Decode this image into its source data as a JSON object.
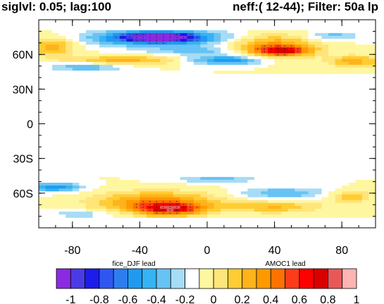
{
  "chart_data": {
    "type": "heatmap",
    "title_left": "siglvl: 0.05; lag:100",
    "title_right": "neff:( 12-44); Filter: 50a lp",
    "x_tick_labels": [
      "-80",
      "-40",
      "0",
      "40",
      "80"
    ],
    "x_ticks": [
      -80,
      -40,
      0,
      40,
      80
    ],
    "y_tick_labels": [
      "60N",
      "30N",
      "0",
      "30S",
      "60S"
    ],
    "y_ticks": [
      60,
      30,
      0,
      -30,
      -60
    ],
    "xlim": [
      -100,
      100
    ],
    "ylim": [
      -90,
      90
    ],
    "colorbar": {
      "left_label": "fice_DJF lead",
      "right_label": "AMOC1 lead",
      "tick_labels": [
        "-1",
        "-0.8",
        "-0.6",
        "-0.4",
        "-0.2",
        "0",
        "0.2",
        "0.4",
        "0.6",
        "0.8",
        "1"
      ],
      "colors": [
        "#8a2be2",
        "#4b3be6",
        "#1c1ceb",
        "#2f56f0",
        "#2e7df0",
        "#1f9af0",
        "#35b3f2",
        "#67c3f3",
        "#a6dcf5",
        "#ffffff",
        "#fff6a0",
        "#ffe57a",
        "#ffcc33",
        "#ffb31a",
        "#ff9900",
        "#ff7200",
        "#ff3c1a",
        "#ff0000",
        "#d90000",
        "#e85858",
        "#ffb3b3"
      ]
    },
    "bands": [
      {
        "name": "north",
        "lat_range": [
          44,
          81
        ],
        "blobs": [
          {
            "x": -28,
            "y": 74,
            "rx": 42,
            "ry": 7,
            "v": -0.55
          },
          {
            "x": -30,
            "y": 75,
            "rx": 22,
            "ry": 4,
            "v": -0.75
          },
          {
            "x": 12,
            "y": 55,
            "rx": 22,
            "ry": 4,
            "v": -0.5
          },
          {
            "x": 38,
            "y": 67,
            "rx": 26,
            "ry": 10,
            "v": 0.45
          },
          {
            "x": 45,
            "y": 63,
            "rx": 15,
            "ry": 4,
            "v": 0.6
          },
          {
            "x": -92,
            "y": 67,
            "rx": 14,
            "ry": 8,
            "v": 0.35
          },
          {
            "x": -50,
            "y": 55,
            "rx": 32,
            "ry": 4,
            "v": 0.35
          },
          {
            "x": 88,
            "y": 54,
            "rx": 16,
            "ry": 5,
            "v": 0.35
          },
          {
            "x": 75,
            "y": 76,
            "rx": 15,
            "ry": 4,
            "v": -0.25
          },
          {
            "x": -72,
            "y": 49,
            "rx": 22,
            "ry": 4,
            "v": -0.3
          },
          {
            "x": -5,
            "y": 63,
            "rx": 28,
            "ry": 4,
            "v": -0.25
          }
        ]
      },
      {
        "name": "south",
        "lat_range": [
          -81,
          -46
        ],
        "blobs": [
          {
            "x": -30,
            "y": -68,
            "rx": 35,
            "ry": 9,
            "v": 0.5
          },
          {
            "x": -22,
            "y": -74,
            "rx": 18,
            "ry": 5,
            "v": 0.65
          },
          {
            "x": -90,
            "y": -55,
            "rx": 16,
            "ry": 4,
            "v": -0.45
          },
          {
            "x": 45,
            "y": -60,
            "rx": 25,
            "ry": 5,
            "v": -0.3
          },
          {
            "x": 40,
            "y": -72,
            "rx": 28,
            "ry": 5,
            "v": 0.3
          },
          {
            "x": 85,
            "y": -63,
            "rx": 12,
            "ry": 5,
            "v": 0.3
          },
          {
            "x": 5,
            "y": -48,
            "rx": 25,
            "ry": 3,
            "v": -0.25
          },
          {
            "x": -75,
            "y": -78,
            "rx": 18,
            "ry": 3,
            "v": -0.2
          }
        ]
      }
    ]
  }
}
